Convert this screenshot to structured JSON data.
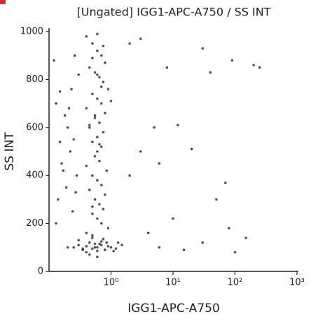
{
  "chart_data": {
    "type": "scatter",
    "title": "[Ungated] IGG1-APC-A750 / SS INT",
    "x_label": "IGG1-APC-A750",
    "y_label": "SS INT",
    "log_x": true,
    "color": "#1a1a1a",
    "xlim": [
      0.1,
      1000
    ],
    "ylim": [
      0,
      1000
    ],
    "xticks": [
      {
        "value": 1,
        "label": "10⁰"
      },
      {
        "value": 10,
        "label": "10¹"
      },
      {
        "value": 100,
        "label": "10²"
      },
      {
        "value": 1000,
        "label": "10³"
      }
    ],
    "yticks": [
      0,
      200,
      400,
      600,
      800,
      1000
    ],
    "x": [
      0.25,
      0.3,
      0.35,
      0.4,
      0.45,
      0.5,
      0.55,
      0.6,
      0.7,
      0.8,
      0.9,
      1.0,
      1.2,
      1.5,
      0.3,
      0.4,
      0.5,
      0.6,
      0.7,
      0.45,
      0.55,
      0.65,
      0.35,
      0.75,
      0.85,
      0.2,
      1.1,
      1.3,
      0.5,
      0.6,
      0.4,
      0.5,
      0.6,
      0.7,
      0.8,
      0.45,
      0.55,
      0.65,
      0.75,
      0.9,
      0.5,
      0.6,
      0.7,
      0.4,
      0.8,
      0.55,
      0.65,
      0.45,
      0.75,
      0.6,
      0.5,
      0.7,
      0.6,
      0.55,
      0.65,
      0.4,
      0.85,
      0.5,
      0.6,
      0.7,
      0.45,
      0.8,
      0.55,
      0.65,
      0.75,
      0.5,
      0.6,
      0.7,
      0.9,
      0.4,
      0.6,
      0.5,
      0.7,
      0.55,
      0.65,
      1.0,
      0.45,
      0.6,
      0.75,
      0.5,
      0.12,
      0.15,
      0.18,
      0.2,
      0.25,
      0.13,
      0.16,
      0.22,
      0.28,
      0.14,
      0.19,
      0.24,
      0.3,
      0.17,
      0.21,
      0.26,
      0.13,
      0.23,
      0.15,
      0.27,
      2,
      3,
      8,
      30,
      90,
      200,
      250,
      40,
      5,
      12,
      20,
      3,
      6,
      2,
      50,
      10,
      80,
      150,
      30,
      6,
      4,
      100,
      15,
      70
    ],
    "values": [
      100,
      110,
      90,
      105,
      120,
      95,
      115,
      100,
      110,
      90,
      105,
      100,
      95,
      110,
      130,
      80,
      140,
      85,
      125,
      70,
      100,
      115,
      95,
      135,
      120,
      100,
      85,
      120,
      150,
      60,
      980,
      950,
      920,
      900,
      870,
      850,
      830,
      810,
      790,
      760,
      740,
      720,
      700,
      680,
      660,
      640,
      620,
      600,
      580,
      560,
      540,
      520,
      500,
      480,
      460,
      440,
      420,
      400,
      380,
      360,
      340,
      320,
      300,
      280,
      260,
      240,
      220,
      200,
      180,
      160,
      990,
      890,
      770,
      650,
      530,
      710,
      610,
      820,
      940,
      270,
      880,
      750,
      650,
      600,
      550,
      700,
      450,
      500,
      400,
      300,
      350,
      250,
      820,
      420,
      680,
      900,
      200,
      760,
      540,
      330,
      950,
      970,
      850,
      930,
      880,
      860,
      850,
      830,
      600,
      610,
      510,
      500,
      450,
      400,
      300,
      220,
      180,
      140,
      120,
      100,
      160,
      80,
      90,
      370
    ]
  }
}
